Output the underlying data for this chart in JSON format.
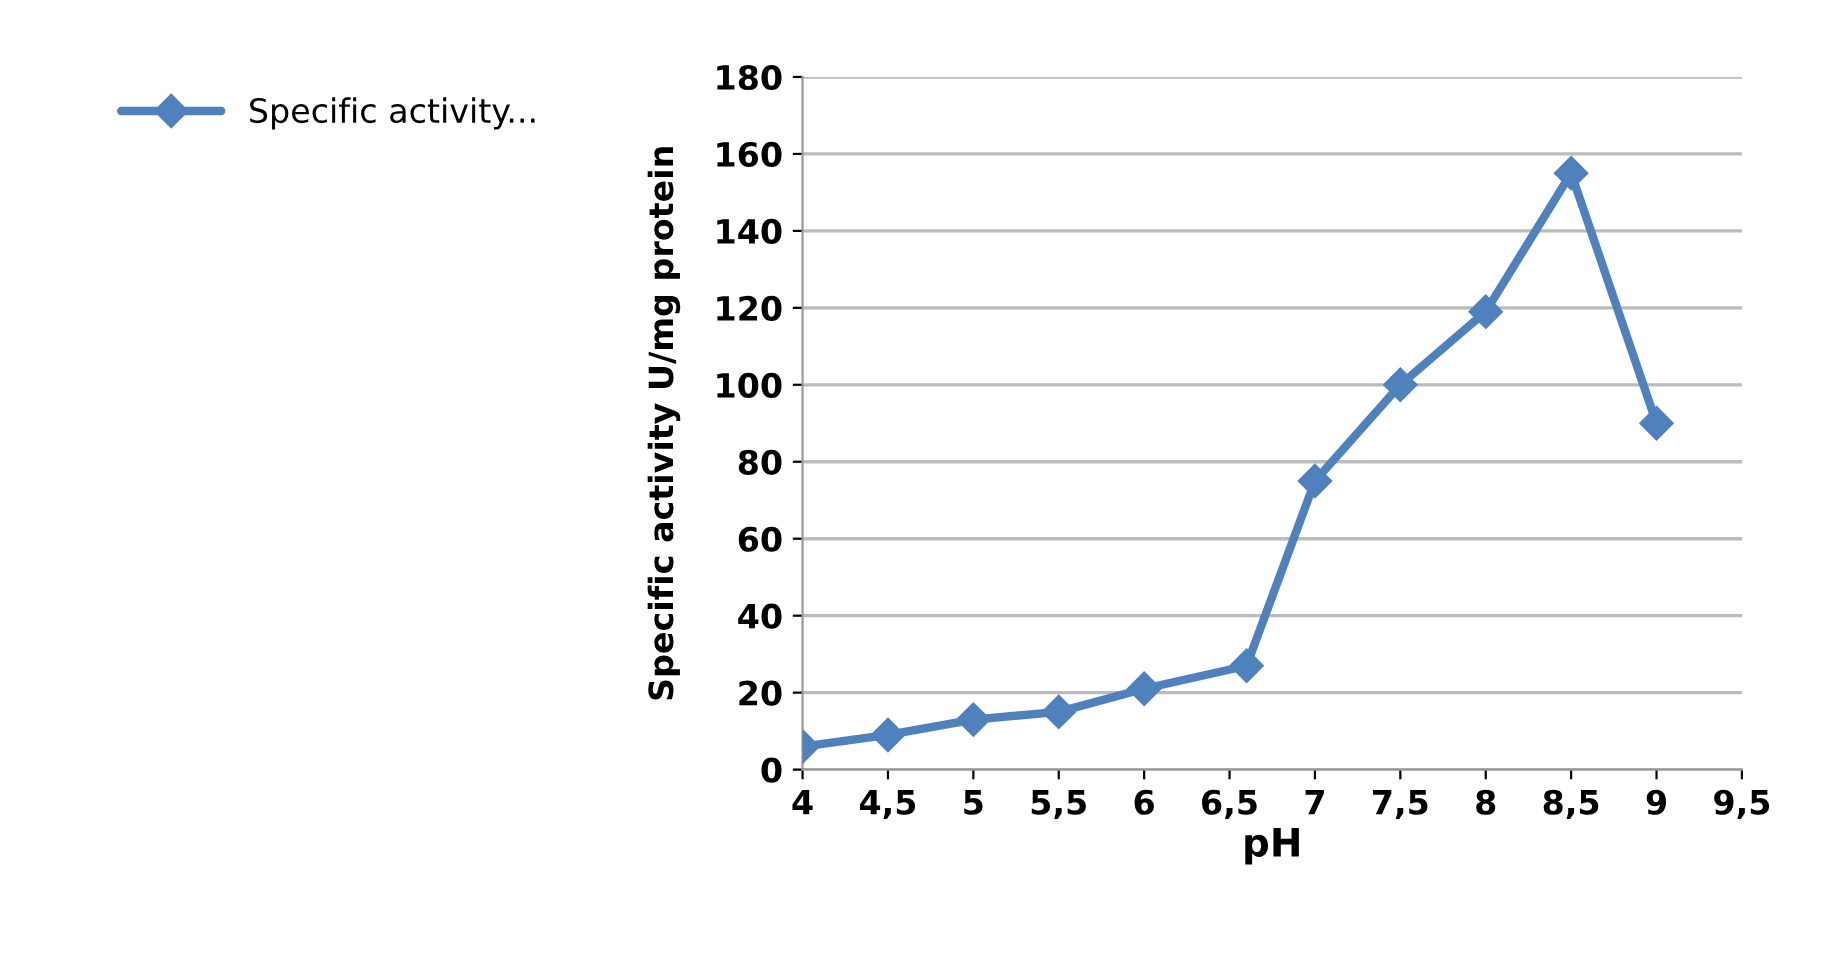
{
  "chart_data": {
    "type": "line",
    "xlabel": "pH",
    "ylabel": "Specific activity U/mg protein",
    "x": [
      4,
      4.5,
      5,
      5.5,
      6,
      6.6,
      7,
      7.5,
      8,
      8.5,
      9
    ],
    "series": [
      {
        "name": "Specific activity...",
        "color": "#4f81bd",
        "values": [
          6,
          9,
          13,
          15,
          21,
          27,
          75,
          100,
          119,
          155,
          90
        ]
      }
    ],
    "xlim": [
      4,
      9.5
    ],
    "xticks": [
      4,
      {
        "value": 4.5,
        "label": "4,5"
      },
      5,
      {
        "value": 5.5,
        "label": "5,5"
      },
      6,
      {
        "value": 6.5,
        "label": "6,5"
      },
      7,
      {
        "value": 7.5,
        "label": "7,5"
      },
      8,
      {
        "value": 8.5,
        "label": "8,5"
      },
      9,
      {
        "value": 9.5,
        "label": "9,5"
      }
    ],
    "ylim": [
      0,
      180
    ],
    "yticks": [
      0,
      20,
      40,
      60,
      80,
      100,
      120,
      140,
      160,
      180
    ],
    "grid": "y",
    "legend": "top left",
    "marker": "diamond",
    "line_style": "solid"
  }
}
